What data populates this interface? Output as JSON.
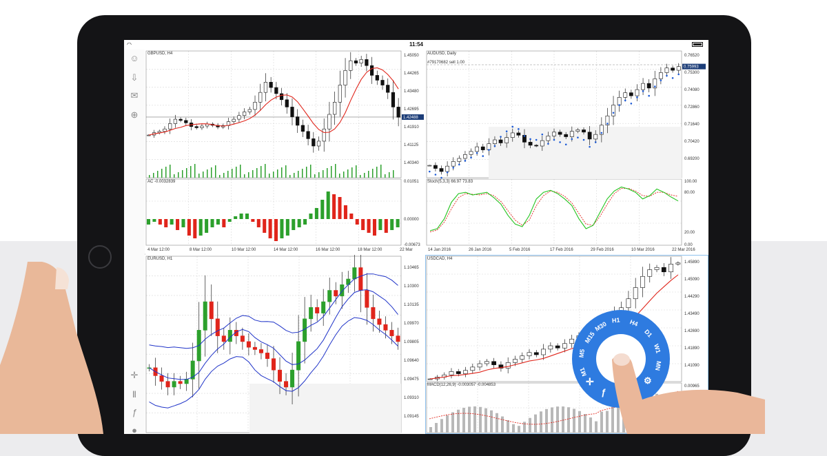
{
  "status_bar": {
    "time": "11:54"
  },
  "toolbar": {
    "items": [
      "user-icon",
      "download-icon",
      "chat-icon",
      "new-file-icon",
      "crosshair-icon",
      "candles-icon",
      "function-icon",
      "objects-icon"
    ]
  },
  "colors": {
    "accent": "#2e7be0",
    "bull": "#2ca02c",
    "bear": "#e0251b",
    "ma": "#e0251b",
    "bands": "#1f33c8",
    "stoch_main": "#22c41e",
    "stoch_signal": "#e0251b",
    "sar": "#1f5cd6"
  },
  "charts": {
    "gbpusd": {
      "title": "GBPUSD, H4",
      "price_labels": [
        "1.45050",
        "1.44265",
        "1.43480",
        "1.42695",
        "1.41910",
        "1.41125",
        "1.40340"
      ],
      "current_price": "1.42488",
      "indicator_title": "AC -0.0032839",
      "indicator_labels": [
        "0.01051",
        "0.00000",
        "-0.00673"
      ],
      "time_labels": [
        "4 Mar 12:00",
        "8 Mar 12:00",
        "10 Mar 12:00",
        "14 Mar 12:00",
        "16 Mar 12:00",
        "18 Mar 12:00",
        "22 Mar"
      ],
      "closes": [
        1.4175,
        1.4185,
        1.419,
        1.42,
        1.4222,
        1.424,
        1.4235,
        1.4225,
        1.421,
        1.4205,
        1.4212,
        1.422,
        1.4215,
        1.4208,
        1.4214,
        1.423,
        1.424,
        1.4255,
        1.427,
        1.428,
        1.431,
        1.435,
        1.4392,
        1.437,
        1.4345,
        1.432,
        1.429,
        1.425,
        1.4215,
        1.419,
        1.416,
        1.413,
        1.415,
        1.42,
        1.426,
        1.431,
        1.438,
        1.444,
        1.448,
        1.447,
        1.4485,
        1.446,
        1.442,
        1.44,
        1.438,
        1.435,
        1.429,
        1.4248
      ],
      "ac": [
        -0.002,
        -0.001,
        -0.002,
        -0.003,
        -0.002,
        -0.004,
        -0.003,
        -0.006,
        -0.007,
        -0.006,
        -0.005,
        -0.003,
        -0.002,
        -0.003,
        -0.001,
        0.001,
        0.002,
        0.002,
        -0.001,
        -0.003,
        -0.005,
        -0.007,
        -0.008,
        -0.007,
        -0.006,
        -0.004,
        -0.003,
        -0.002,
        0.002,
        0.004,
        0.007,
        0.01,
        0.009,
        0.008,
        0.005,
        0.002,
        -0.002,
        -0.004,
        -0.005,
        -0.006,
        -0.004,
        -0.005,
        -0.004,
        -0.003
      ]
    },
    "audusd": {
      "title": "AUDUSD, Daily",
      "order_label": "#79170682 sell 1.00",
      "price_labels": [
        "0.76520",
        "0.75300",
        "0.74080",
        "0.72860",
        "0.71640",
        "0.70420",
        "0.69200"
      ],
      "current_price": "0.75993",
      "indicator_title": "Stoch(5,3,3) 66.97 73.83",
      "indicator_labels": [
        "100.00",
        "80.00",
        "20.00",
        "0.00"
      ],
      "time_labels": [
        "14 Jan 2016",
        "26 Jan 2016",
        "5 Feb 2016",
        "17 Feb 2016",
        "29 Feb 2016",
        "10 Mar 2016",
        "22 Mar 2016"
      ],
      "closes": [
        0.696,
        0.694,
        0.692,
        0.6955,
        0.6985,
        0.7005,
        0.703,
        0.705,
        0.708,
        0.706,
        0.71,
        0.7125,
        0.7105,
        0.714,
        0.717,
        0.7155,
        0.711,
        0.709,
        0.7085,
        0.712,
        0.715,
        0.7175,
        0.716,
        0.7145,
        0.718,
        0.719,
        0.7175,
        0.713,
        0.716,
        0.722,
        0.728,
        0.735,
        0.74,
        0.743,
        0.741,
        0.745,
        0.749,
        0.746,
        0.752,
        0.756,
        0.759,
        0.7575,
        0.7599
      ],
      "stoch_main": [
        22,
        25,
        40,
        65,
        78,
        80,
        76,
        78,
        80,
        72,
        62,
        45,
        32,
        28,
        45,
        70,
        80,
        83,
        78,
        70,
        60,
        40,
        25,
        30,
        50,
        70,
        82,
        88,
        85,
        80,
        70,
        75,
        85,
        80,
        73,
        67
      ],
      "stoch_signal": [
        20,
        23,
        35,
        55,
        72,
        78,
        77,
        76,
        78,
        75,
        66,
        52,
        38,
        30,
        38,
        60,
        75,
        82,
        80,
        74,
        64,
        48,
        32,
        30,
        44,
        62,
        78,
        86,
        86,
        82,
        75,
        74,
        80,
        80,
        76,
        74
      ]
    },
    "eurusd": {
      "title": "EURUSD, H1",
      "price_labels": [
        "1.10465",
        "1.10300",
        "1.10135",
        "1.09970",
        "1.09805",
        "1.09640",
        "1.09475",
        "1.09310",
        "1.09145"
      ],
      "closes": [
        1.0962,
        1.0955,
        1.095,
        1.0945,
        1.095,
        1.0948,
        1.0952,
        1.0968,
        1.0995,
        1.102,
        1.1005,
        1.099,
        1.0985,
        1.0995,
        1.099,
        1.0985,
        1.098,
        1.0978,
        1.0975,
        1.097,
        1.096,
        1.095,
        1.0945,
        1.096,
        1.0985,
        1.1005,
        1.1015,
        1.101,
        1.102,
        1.103,
        1.1025,
        1.1035,
        1.104,
        1.105,
        1.103,
        1.1015,
        1.1005,
        1.1,
        1.0995,
        1.099,
        1.0985
      ]
    },
    "usdcad": {
      "title": "USDCAD, H4",
      "price_labels": [
        "1.45890",
        "1.45090",
        "1.44290",
        "1.43490",
        "1.42690",
        "1.41890",
        "1.41090"
      ],
      "indicator_title": "MACD(12,26,9) -0.003057 -0.004853",
      "indicator_labels": [
        "0.00965"
      ],
      "closes": [
        1.4062,
        1.407,
        1.408,
        1.4095,
        1.4085,
        1.41,
        1.4115,
        1.413,
        1.414,
        1.4125,
        1.411,
        1.4135,
        1.415,
        1.4165,
        1.418,
        1.417,
        1.4195,
        1.421,
        1.42,
        1.422,
        1.424,
        1.4255,
        1.4245,
        1.427,
        1.429,
        1.431,
        1.435,
        1.438,
        1.442,
        1.447,
        1.452,
        1.455,
        1.456,
        1.454,
        1.4575,
        1.458
      ]
    }
  },
  "timeframe_wheel": {
    "items": [
      "M1",
      "M5",
      "M15",
      "M30",
      "H1",
      "H4",
      "D1",
      "W1",
      "MN"
    ]
  }
}
